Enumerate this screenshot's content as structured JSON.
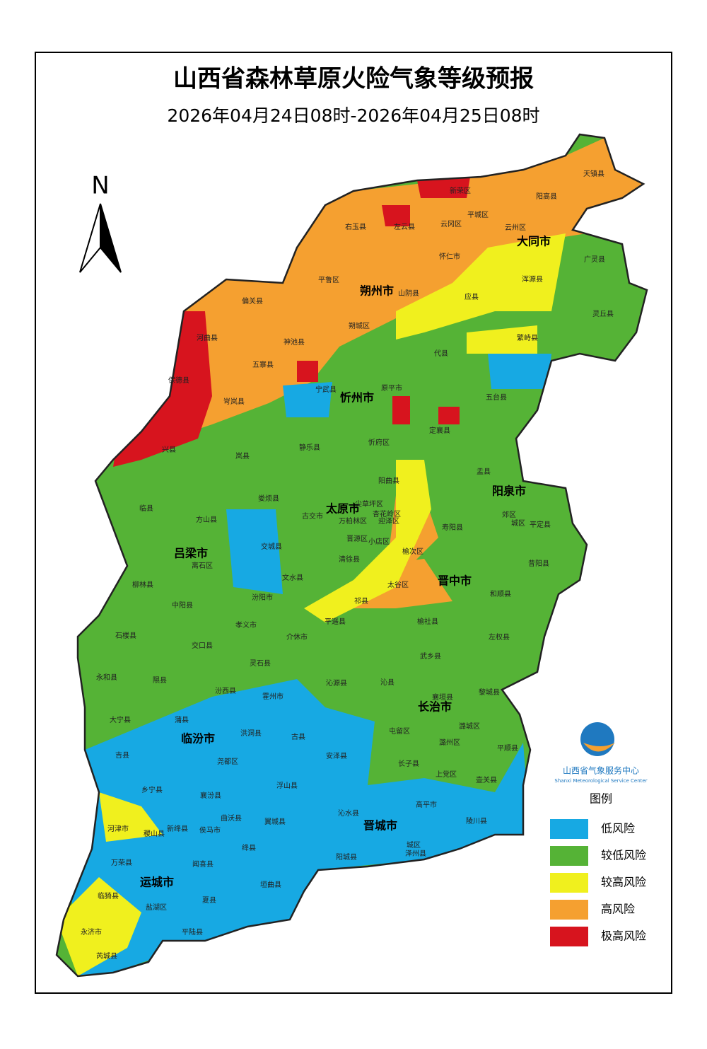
{
  "title": "山西省森林草原火险气象等级预报",
  "subtitle": "2026年04月24日08时-2026年04月25日08时",
  "compass": "N",
  "cities": [
    "大同市",
    "朔州市",
    "忻州市",
    "太原市",
    "阳泉市",
    "吕梁市",
    "晋中市",
    "长治市",
    "临汾市",
    "晋城市",
    "运城市"
  ],
  "counties": [
    "天镇县",
    "新荣区",
    "阳高县",
    "右玉县",
    "左云县",
    "平城区",
    "云冈区",
    "云州区",
    "怀仁市",
    "广灵县",
    "浑源县",
    "平鲁区",
    "山阴县",
    "应县",
    "偏关县",
    "灵丘县",
    "河曲县",
    "朔城区",
    "神池县",
    "繁峙县",
    "代县",
    "保德县",
    "五寨县",
    "宁武县",
    "原平市",
    "五台县",
    "岢岚县",
    "定襄县",
    "兴县",
    "岚县",
    "静乐县",
    "忻府区",
    "盂县",
    "阳曲县",
    "娄烦县",
    "临县",
    "尖草坪区",
    "杏花岭区",
    "古交市",
    "万柏林区",
    "迎泽区",
    "郊区",
    "城区",
    "平定县",
    "方山县",
    "寿阳县",
    "晋源区",
    "小店区",
    "交城县",
    "榆次区",
    "离石区",
    "清徐县",
    "昔阳县",
    "柳林县",
    "文水县",
    "太谷区",
    "和顺县",
    "中阳县",
    "祁县",
    "汾阳市",
    "平遥县",
    "孝义市",
    "榆社县",
    "石楼县",
    "介休市",
    "左权县",
    "交口县",
    "灵石县",
    "武乡县",
    "永和县",
    "隰县",
    "沁源县",
    "沁县",
    "黎城县",
    "汾西县",
    "霍州市",
    "襄垣县",
    "大宁县",
    "蒲县",
    "潞城区",
    "屯留区",
    "洪洞县",
    "古县",
    "潞州区",
    "平顺县",
    "吉县",
    "尧都区",
    "安泽县",
    "长子县",
    "上党区",
    "壶关县",
    "乡宁县",
    "浮山县",
    "襄汾县",
    "高平市",
    "曲沃县",
    "翼城县",
    "沁水县",
    "陵川县",
    "河津市",
    "新绛县",
    "侯马市",
    "稷山县",
    "绛县",
    "城区",
    "泽州县",
    "万荣县",
    "闻喜县",
    "阳城县",
    "垣曲县",
    "临猗县",
    "夏县",
    "盐湖区",
    "永济市",
    "平陆县",
    "芮城县"
  ],
  "legend": {
    "title": "图例",
    "items": [
      {
        "label": "低风险",
        "color": "#17a9e3"
      },
      {
        "label": "较低风险",
        "color": "#55b336"
      },
      {
        "label": "较高风险",
        "color": "#f0f01e"
      },
      {
        "label": "高风险",
        "color": "#f5a030"
      },
      {
        "label": "极高风险",
        "color": "#d7141e"
      }
    ]
  },
  "logo": {
    "name": "山西省气象服务中心",
    "name_en": "Shanxi Meteorological Service Center"
  }
}
